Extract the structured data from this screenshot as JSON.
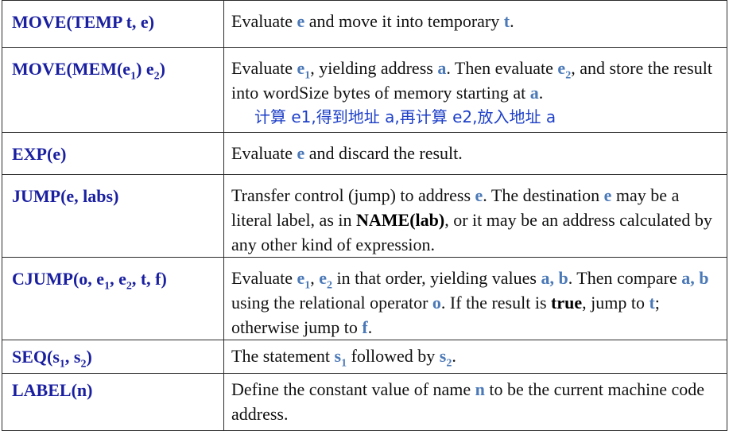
{
  "colors": {
    "keyword": "#1a1fa0",
    "variable": "#4b79b7",
    "chinese_note": "#1e40c8",
    "text": "#111111",
    "border": "#2b2b2b"
  },
  "rows": [
    {
      "kw": [
        "MOVE(TEMP t, e)"
      ],
      "desc": [
        "Evaluate ",
        "e",
        " and move it into temporary ",
        "t",
        "."
      ]
    },
    {
      "kw": [
        "MOVE(MEM(e",
        "1",
        ") e",
        "2",
        ")"
      ],
      "desc": [
        "Evaluate ",
        "e",
        "1",
        ", yielding address ",
        "a",
        ". Then evaluate ",
        "e",
        "2",
        ", and store the result into wordSize bytes of memory starting at ",
        "a",
        "."
      ],
      "note": "计算 e1,得到地址 a,再计算 e2,放入地址 a"
    },
    {
      "kw": [
        "EXP(e)"
      ],
      "desc": [
        "Evaluate ",
        "e",
        " and discard the result."
      ]
    },
    {
      "kw": [
        "JUMP(e, labs)"
      ],
      "desc": [
        "Transfer control (jump) to address ",
        "e",
        ". The destination ",
        "e",
        " may be a literal label, as in ",
        "NAME(lab)",
        ", or it may be an address calculated by any other kind of expression."
      ]
    },
    {
      "kw": [
        "CJUMP(o, e",
        "1",
        ", e",
        "2",
        ", t, f)"
      ],
      "desc": [
        "Evaluate ",
        "e",
        "1",
        ", ",
        "e",
        "2",
        " in that order, yielding values ",
        "a, b",
        ". Then compare ",
        "a, b",
        " using the relational operator ",
        "o",
        ". If the result is ",
        "true",
        ", jump to ",
        "t",
        "; otherwise jump to ",
        "f",
        "."
      ]
    },
    {
      "kw": [
        "SEQ(s",
        "1",
        ", s",
        "2",
        ")"
      ],
      "desc": [
        "The statement ",
        "s",
        "1",
        " followed by ",
        "s",
        "2",
        "."
      ]
    },
    {
      "kw": [
        "LABEL(n)"
      ],
      "desc": [
        "Define the constant value of name ",
        "n",
        " to be the current machine code address."
      ]
    }
  ]
}
